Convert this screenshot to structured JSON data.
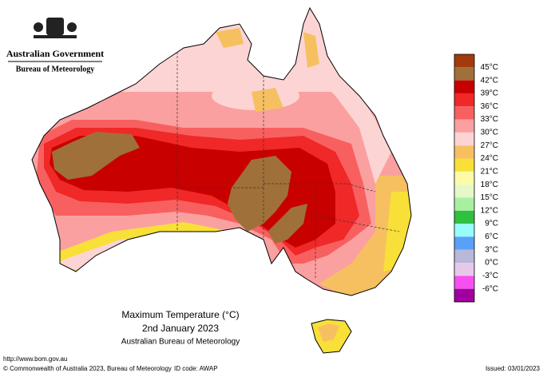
{
  "header": {
    "government": "Australian Government",
    "agency": "Bureau of Meteorology"
  },
  "map": {
    "title": "Maximum Temperature (°C)",
    "date": "2nd January 2023",
    "source": "Australian Bureau of Meteorology"
  },
  "legend": {
    "colors": [
      "#a33a0c",
      "#a0703a",
      "#c80000",
      "#f02828",
      "#f86060",
      "#fba0a0",
      "#fdd4d4",
      "#f6c060",
      "#f8e038",
      "#fcfca8",
      "#e4f8c8",
      "#a8f0a0",
      "#30c040",
      "#98fcfc",
      "#58a0f8",
      "#b8b8d8",
      "#e8c8e8",
      "#f850f0",
      "#a000a0"
    ],
    "labels": [
      "45°C",
      "42°C",
      "39°C",
      "36°C",
      "33°C",
      "30°C",
      "27°C",
      "24°C",
      "21°C",
      "18°C",
      "15°C",
      "12°C",
      "9°C",
      "6°C",
      "3°C",
      "0°C",
      "-3°C",
      "-6°C"
    ]
  },
  "footer": {
    "url": "http://www.bom.gov.au",
    "copyright": "© Commonwealth of Australia 2023, Bureau of Meteorology",
    "id_code": "ID code: AWAP",
    "issued": "Issued: 03/01/2023"
  }
}
